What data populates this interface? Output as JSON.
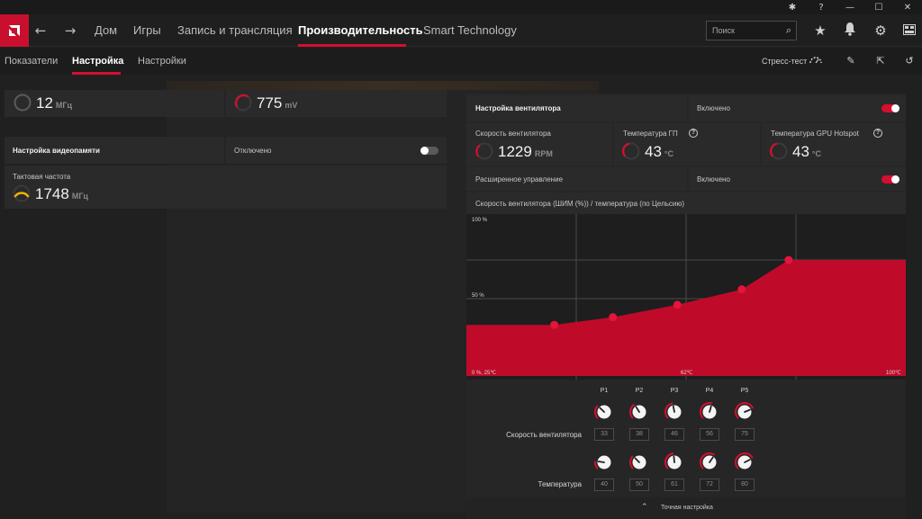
{
  "nav": {
    "tabs": [
      "Дом",
      "Игры",
      "Запись и трансляция",
      "Производительность",
      "Smart Technology"
    ],
    "search_placeholder": "Поиск"
  },
  "subnav": {
    "tabs": [
      "Показатели",
      "Настройка",
      "Настройки"
    ],
    "stress_test": "Стресс-тест"
  },
  "left": {
    "clock_top": {
      "value": "12",
      "unit": "МГц"
    },
    "voltage": {
      "value": "775",
      "unit": "mV"
    },
    "vram_tuning": {
      "label": "Настройка видеопамяти",
      "state": "Отключено",
      "enabled": false
    },
    "mem_clock": {
      "label": "Тактовая частота",
      "value": "1748",
      "unit": "МГц"
    }
  },
  "fan": {
    "title": "Настройка вентилятора",
    "state": "Включено",
    "speed": {
      "label": "Скорость вентилятора",
      "value": "1229",
      "unit": "RPM"
    },
    "gpu_temp": {
      "label": "Температура ГП",
      "value": "43",
      "unit": "°C"
    },
    "hotspot_temp": {
      "label": "Температура GPU Hotspot",
      "value": "43",
      "unit": "°C"
    },
    "advanced": {
      "label": "Расширенное управление",
      "state": "Включено"
    },
    "chart_title": "Скорость вентилятора (ШИМ (%)) / температура (по Цельсию)",
    "points": [
      "P1",
      "P2",
      "P3",
      "P4",
      "P5"
    ],
    "speed_label": "Скорость вентилятора",
    "temp_label": "Температура",
    "speeds": [
      "33",
      "38",
      "46",
      "56",
      "75"
    ],
    "temps": [
      "40",
      "50",
      "61",
      "72",
      "80"
    ],
    "fine_tuning": "Точная настройка"
  },
  "chart_data": {
    "type": "area",
    "x": [
      25,
      40,
      50,
      61,
      72,
      80,
      100
    ],
    "y": [
      33,
      33,
      38,
      46,
      56,
      75,
      75
    ],
    "points": [
      {
        "name": "P1",
        "x": 40,
        "y": 33
      },
      {
        "name": "P2",
        "x": 50,
        "y": 38
      },
      {
        "name": "P3",
        "x": 61,
        "y": 46
      },
      {
        "name": "P4",
        "x": 72,
        "y": 56
      },
      {
        "name": "P5",
        "x": 80,
        "y": 75
      }
    ],
    "xlim": [
      25,
      100
    ],
    "ylim": [
      0,
      100
    ],
    "tick_labels": {
      "y_top": "100 %",
      "y_mid": "50 %",
      "origin": "0 %, 25℃",
      "x_mid": "62℃",
      "x_max": "100℃"
    },
    "grid": true,
    "color": "#c00a2a"
  },
  "colors": {
    "accent": "#d40f2f",
    "gauge_yellow": "#f0b400"
  }
}
